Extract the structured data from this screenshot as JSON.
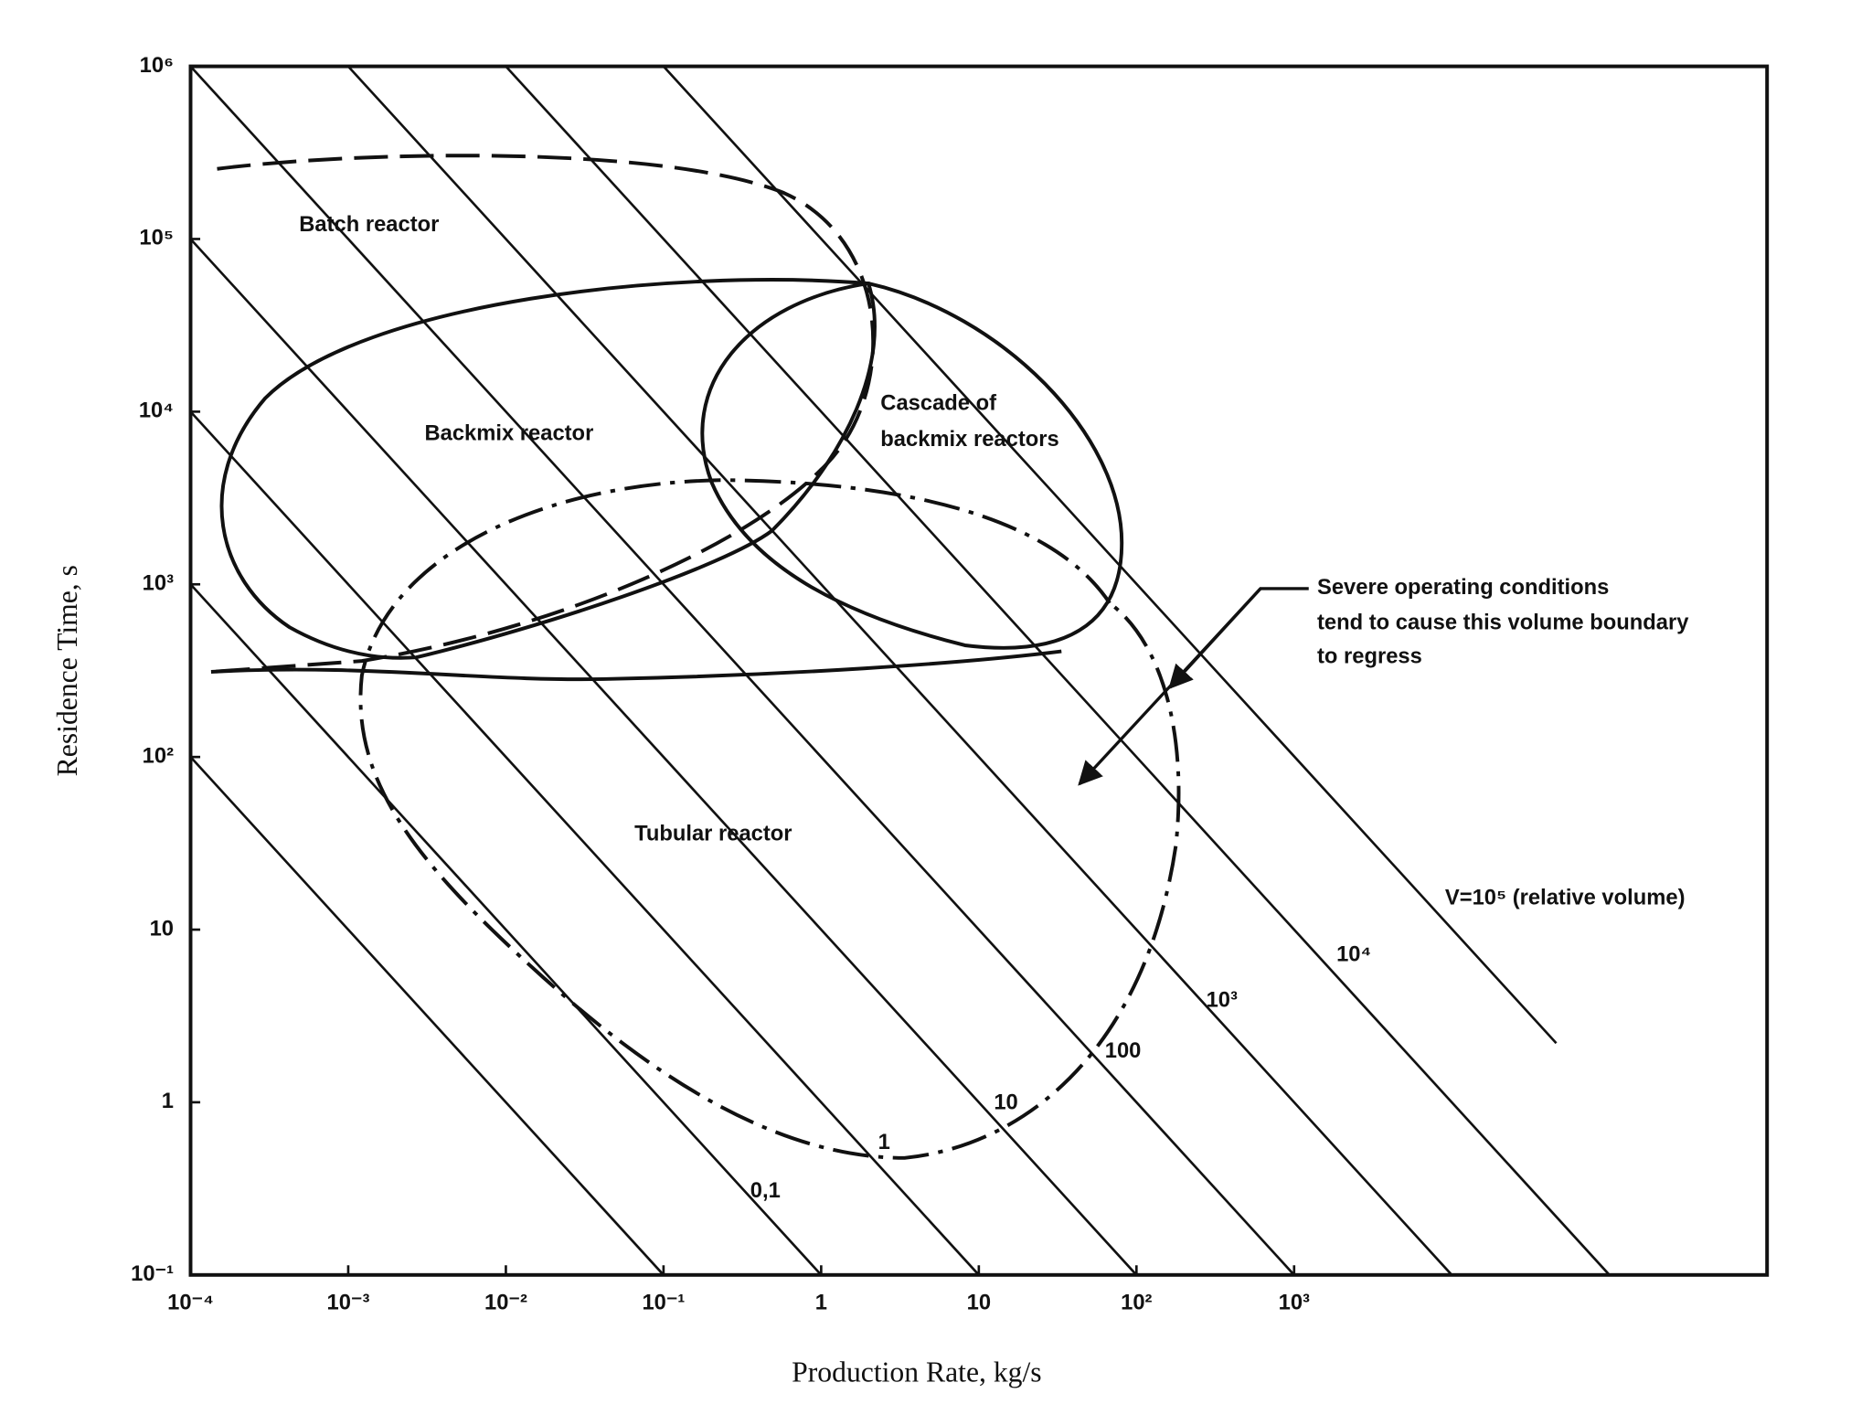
{
  "chart_data": {
    "type": "line",
    "x_label": "Production Rate, kg/s",
    "y_label": "Residence Time, s",
    "xscale": "log",
    "yscale": "log",
    "grid": false,
    "xlim": [
      0.0001,
      1000000
    ],
    "ylim": [
      0.1,
      1000000
    ],
    "xticks": [
      {
        "value": 0.0001,
        "label": "10⁻⁴"
      },
      {
        "value": 0.001,
        "label": "10⁻³"
      },
      {
        "value": 0.01,
        "label": "10⁻²"
      },
      {
        "value": 0.1,
        "label": "10⁻¹"
      },
      1,
      10,
      {
        "value": 100,
        "label": "10²"
      },
      {
        "value": 1000,
        "label": "10³"
      }
    ],
    "yticks": [
      {
        "value": 0.1,
        "label": "10⁻¹"
      },
      1,
      10,
      {
        "value": 100,
        "label": "10²"
      },
      {
        "value": 1000,
        "label": "10³"
      },
      {
        "value": 10000,
        "label": "10⁴"
      },
      {
        "value": 100000,
        "label": "10⁵"
      },
      {
        "value": 1000000,
        "label": "10⁶"
      }
    ],
    "series": [
      {
        "color": "#111",
        "x": [
          0.0001,
          0.1
        ],
        "values": [
          100,
          0.1
        ]
      },
      {
        "color": "#111",
        "x": [
          0.0001,
          1
        ],
        "values": [
          1000,
          0.1
        ],
        "label": "0,1"
      },
      {
        "color": "#111",
        "x": [
          0.0001,
          10
        ],
        "values": [
          10000,
          0.1
        ],
        "label": "1"
      },
      {
        "color": "#111",
        "x": [
          0.0001,
          100
        ],
        "values": [
          100000,
          0.1
        ],
        "label": "10"
      },
      {
        "color": "#111",
        "x": [
          0.0001,
          1000
        ],
        "values": [
          1000000,
          0.1
        ],
        "label": "100"
      },
      {
        "color": "#111",
        "x": [
          0.001,
          10000
        ],
        "values": [
          1000000,
          0.1
        ],
        "label": "10³"
      },
      {
        "color": "#111",
        "x": [
          0.01,
          100000
        ],
        "values": [
          1000000,
          0.1
        ],
        "label": "10⁴"
      },
      {
        "color": "#111",
        "x": [
          0.1,
          46000
        ],
        "values": [
          1000000,
          2.2
        ],
        "label": "V=10⁵ (relative volume)"
      }
    ],
    "regions": [
      {
        "lines": [
          "Batch reactor"
        ]
      },
      {
        "lines": [
          "Backmix reactor"
        ]
      },
      {
        "lines": [
          "Cascade of",
          "backmix reactors"
        ]
      },
      {
        "lines": [
          "Tubular reactor"
        ]
      }
    ],
    "annotation": {
      "lines": [
        "Severe operating conditions",
        "tend to cause this volume boundary",
        "to regress"
      ]
    }
  }
}
